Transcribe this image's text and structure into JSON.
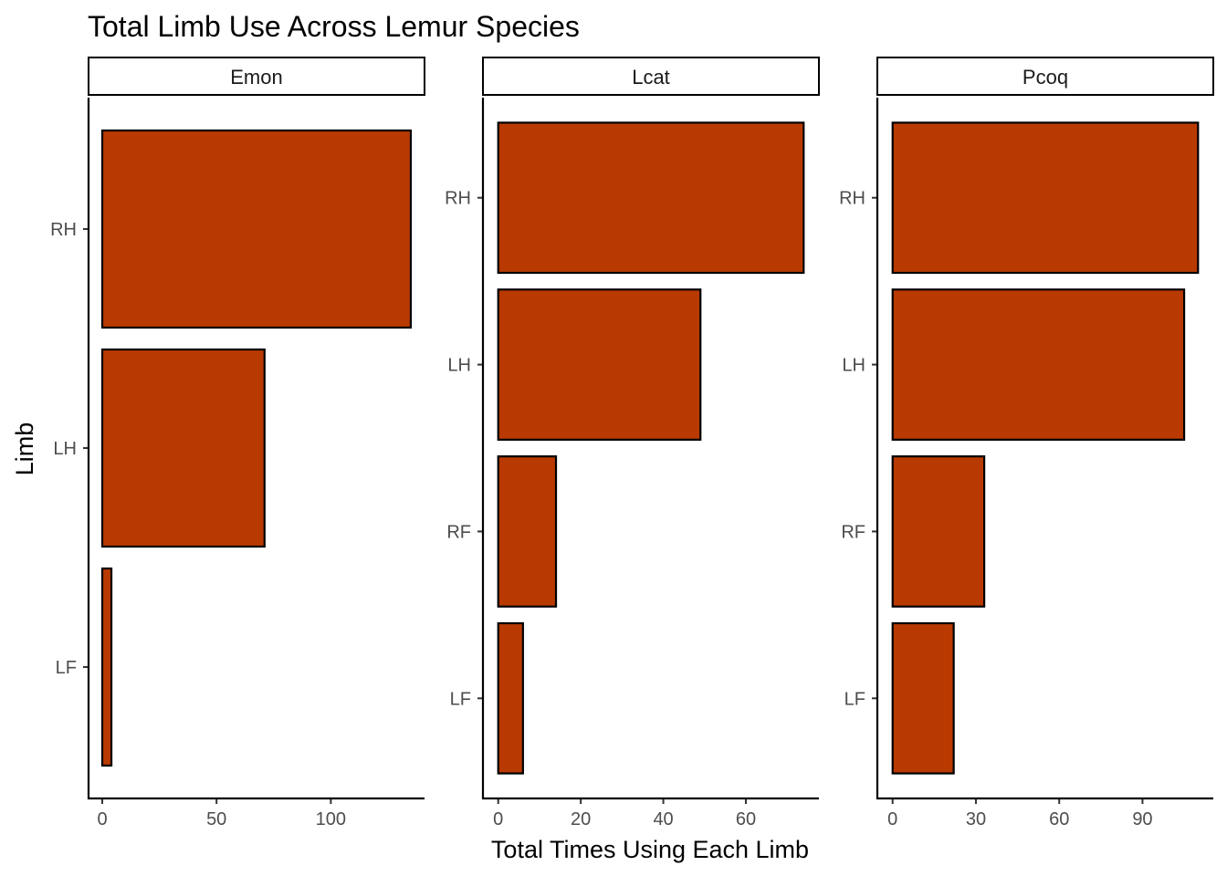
{
  "chart_data": {
    "type": "bar",
    "orientation": "horizontal",
    "title": "Total Limb Use Across Lemur Species",
    "xlabel": "Total Times Using Each Limb",
    "ylabel": "Limb",
    "grid": false,
    "bar_color": "#B83A00",
    "bar_outline": "#000000",
    "facets": [
      {
        "name": "Emon",
        "categories": [
          "RH",
          "LH",
          "LF"
        ],
        "values": [
          135,
          71,
          4
        ],
        "xlim": [
          -6,
          141
        ],
        "xticks": [
          0,
          50,
          100
        ]
      },
      {
        "name": "Lcat",
        "categories": [
          "RH",
          "LH",
          "RF",
          "LF"
        ],
        "values": [
          74,
          49,
          14,
          6
        ],
        "xlim": [
          -3.7,
          77.7
        ],
        "xticks": [
          0,
          20,
          40,
          60
        ]
      },
      {
        "name": "Pcoq",
        "categories": [
          "RH",
          "LH",
          "RF",
          "LF"
        ],
        "values": [
          110,
          105,
          33,
          22
        ],
        "xlim": [
          -5.5,
          115.5
        ],
        "xticks": [
          0,
          30,
          60,
          90
        ]
      }
    ]
  }
}
